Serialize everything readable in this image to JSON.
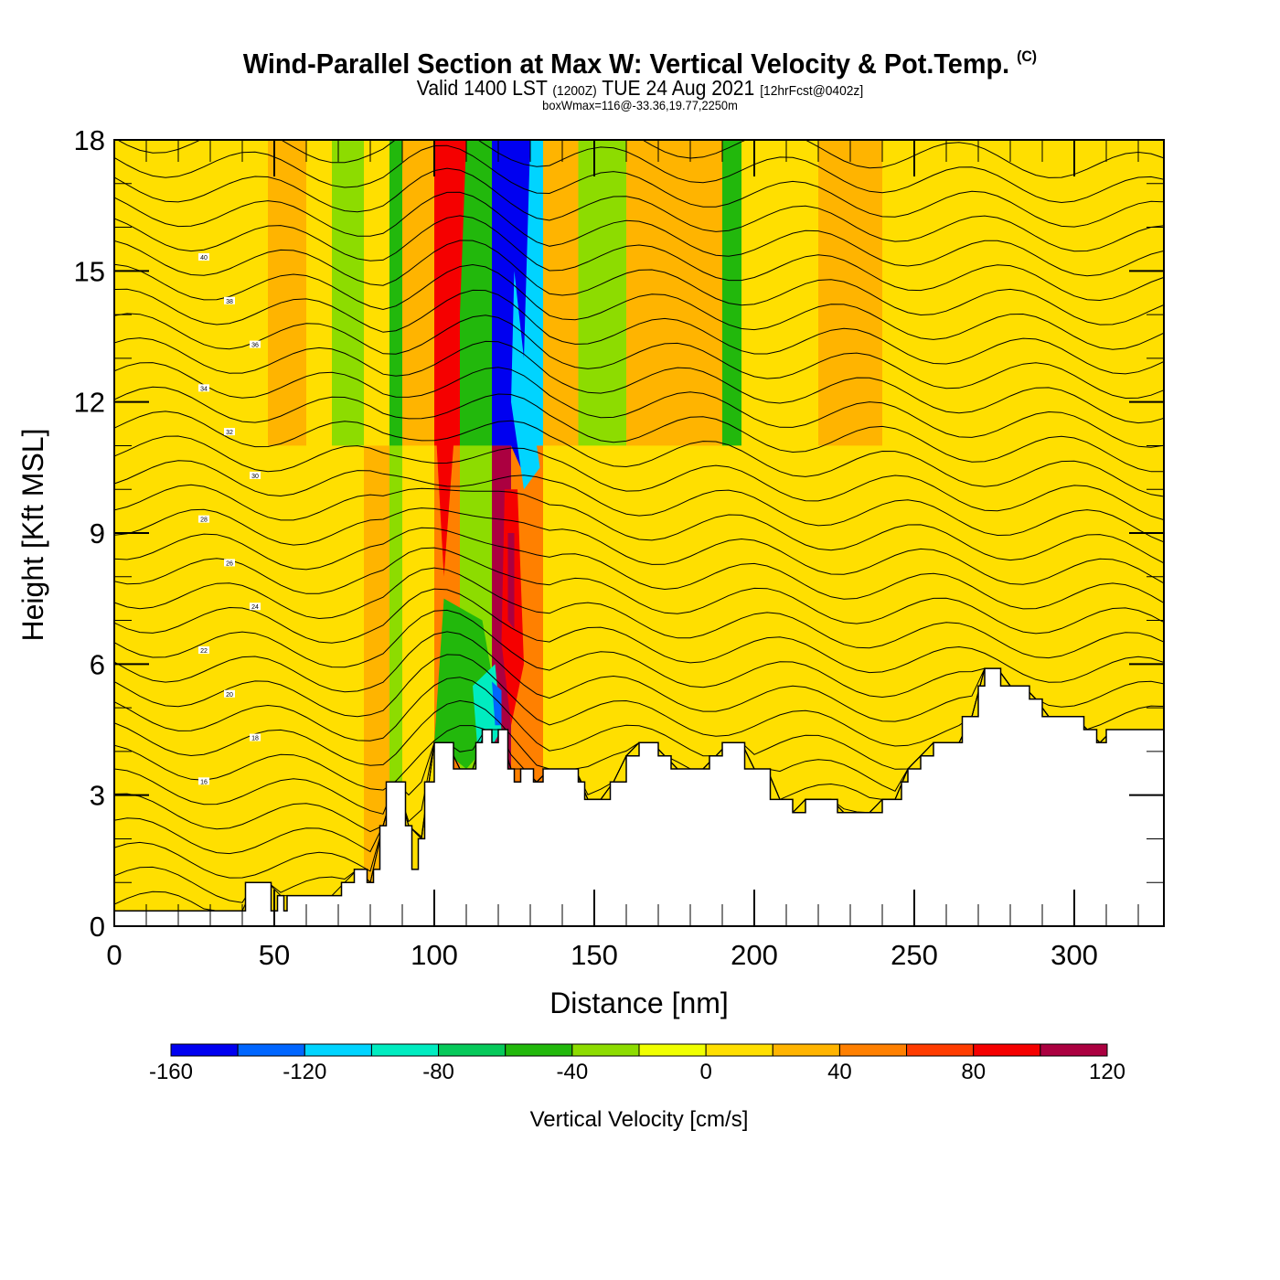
{
  "header": {
    "title_main": "Wind-Parallel Section at Max W: Vertical Velocity & Pot.Temp.",
    "title_copyright": "(C)",
    "valid_prefix": "Valid 1400 LST",
    "valid_utc": "(1200Z)",
    "valid_date": "TUE 24 Aug 2021",
    "forecast_info": "[12hrFcst@0402z]",
    "box_wmax": "boxWmax=116@-33.36,19.77,2250m"
  },
  "chart_data": {
    "type": "heatmap",
    "title": "Wind-Parallel Section at Max W: Vertical Velocity & Pot.Temp.",
    "xlabel": "Distance [nm]",
    "ylabel": "Height [Kft MSL]",
    "xlim": [
      0,
      328
    ],
    "ylim": [
      0,
      18
    ],
    "x_ticks": [
      0,
      50,
      100,
      150,
      200,
      250,
      300
    ],
    "y_ticks": [
      0,
      3,
      6,
      9,
      12,
      15,
      18
    ],
    "grid": false,
    "colorbar": {
      "title": "Vertical Velocity [cm/s]",
      "placement": "bottom",
      "boundaries": [
        -160,
        -140,
        -120,
        -100,
        -80,
        -60,
        -40,
        -20,
        0,
        20,
        40,
        60,
        80,
        100,
        120
      ],
      "tick_labels": [
        "-160",
        "-120",
        "-80",
        "-40",
        "0",
        "40",
        "80",
        "120"
      ],
      "tick_values": [
        -160,
        -120,
        -80,
        -40,
        0,
        40,
        80,
        120
      ],
      "colors": [
        "#0000f0",
        "#0066ff",
        "#00d4ff",
        "#00ecc0",
        "#06c95a",
        "#22b80c",
        "#8ddc00",
        "#f0ff00",
        "#ffdf00",
        "#ffb400",
        "#ff8000",
        "#ff3c00",
        "#f50000",
        "#ab0040"
      ]
    },
    "vertical_velocity_bands": [
      {
        "x0": 0,
        "x1": 35,
        "y0": 0,
        "y1": 18,
        "upper": 0,
        "lower": 10
      },
      {
        "x0": 35,
        "x1": 48,
        "y0": 0,
        "y1": 18,
        "upper": 10,
        "lower": 0
      },
      {
        "x0": 48,
        "x1": 60,
        "y0": 0,
        "y1": 18,
        "upper": 30,
        "lower": 10
      },
      {
        "x0": 60,
        "x1": 68,
        "y0": 0,
        "y1": 18,
        "upper": 10,
        "lower": 0
      },
      {
        "x0": 68,
        "x1": 78,
        "y0": 0,
        "y1": 18,
        "upper": -30,
        "lower": 10
      },
      {
        "x0": 78,
        "x1": 86,
        "y0": 0,
        "y1": 18,
        "upper": 10,
        "lower": 30
      },
      {
        "x0": 86,
        "x1": 90,
        "y0": 0,
        "y1": 18,
        "upper": -50,
        "lower": -30
      },
      {
        "x0": 90,
        "x1": 100,
        "y0": 0,
        "y1": 18,
        "upper": 30,
        "lower": 10
      },
      {
        "x0": 100,
        "x1": 108,
        "y0": 0,
        "y1": 18,
        "upper": 90,
        "lower": 50
      },
      {
        "x0": 108,
        "x1": 118,
        "y0": 0,
        "y1": 18,
        "upper": -50,
        "lower": -30
      },
      {
        "x0": 118,
        "x1": 124,
        "y0": 0,
        "y1": 18,
        "upper": -150,
        "lower": 110
      },
      {
        "x0": 124,
        "x1": 134,
        "y0": 0,
        "y1": 18,
        "upper": -110,
        "lower": 50
      },
      {
        "x0": 134,
        "x1": 145,
        "y0": 0,
        "y1": 18,
        "upper": 30,
        "lower": 10
      },
      {
        "x0": 145,
        "x1": 160,
        "y0": 0,
        "y1": 18,
        "upper": -30,
        "lower": 10
      },
      {
        "x0": 160,
        "x1": 190,
        "y0": 0,
        "y1": 18,
        "upper": 30,
        "lower": 10
      },
      {
        "x0": 190,
        "x1": 196,
        "y0": 0,
        "y1": 18,
        "upper": -50,
        "lower": 10
      },
      {
        "x0": 196,
        "x1": 220,
        "y0": 0,
        "y1": 18,
        "upper": 10,
        "lower": 10
      },
      {
        "x0": 220,
        "x1": 240,
        "y0": 0,
        "y1": 18,
        "upper": 30,
        "lower": 0
      },
      {
        "x0": 240,
        "x1": 300,
        "y0": 0,
        "y1": 18,
        "upper": 10,
        "lower": 10
      },
      {
        "x0": 300,
        "x1": 328,
        "y0": 0,
        "y1": 18,
        "upper": 10,
        "lower": 0
      }
    ],
    "terrain_kft": [
      [
        0,
        0.35
      ],
      [
        41,
        0.35
      ],
      [
        41,
        1.0
      ],
      [
        49,
        1.0
      ],
      [
        49,
        0.35
      ],
      [
        51,
        0.35
      ],
      [
        51,
        0.7
      ],
      [
        53,
        0.7
      ],
      [
        53,
        0.35
      ],
      [
        54,
        0.35
      ],
      [
        54,
        0.7
      ],
      [
        71,
        0.7
      ],
      [
        71,
        1.0
      ],
      [
        75,
        1.0
      ],
      [
        75,
        1.3
      ],
      [
        79,
        1.3
      ],
      [
        79,
        1.0
      ],
      [
        81,
        1.0
      ],
      [
        81,
        1.3
      ],
      [
        83,
        1.3
      ],
      [
        83,
        2.3
      ],
      [
        85,
        2.3
      ],
      [
        85,
        3.3
      ],
      [
        91,
        3.3
      ],
      [
        91,
        2.3
      ],
      [
        93,
        2.3
      ],
      [
        93,
        1.3
      ],
      [
        95,
        1.3
      ],
      [
        95,
        2.0
      ],
      [
        97,
        2.0
      ],
      [
        97,
        3.3
      ],
      [
        100,
        3.3
      ],
      [
        100,
        4.2
      ],
      [
        106,
        4.2
      ],
      [
        106,
        3.6
      ],
      [
        108,
        3.6
      ],
      [
        108,
        3.6
      ],
      [
        113,
        3.6
      ],
      [
        113,
        4.2
      ],
      [
        115,
        4.2
      ],
      [
        115,
        4.5
      ],
      [
        118,
        4.5
      ],
      [
        118,
        4.2
      ],
      [
        120,
        4.2
      ],
      [
        120,
        4.5
      ],
      [
        123,
        4.5
      ],
      [
        123,
        3.6
      ],
      [
        125,
        3.6
      ],
      [
        125,
        3.3
      ],
      [
        127,
        3.3
      ],
      [
        127,
        3.6
      ],
      [
        131,
        3.6
      ],
      [
        131,
        3.3
      ],
      [
        134,
        3.3
      ],
      [
        134,
        3.6
      ],
      [
        145,
        3.6
      ],
      [
        145,
        3.3
      ],
      [
        147,
        3.3
      ],
      [
        147,
        2.9
      ],
      [
        155,
        2.9
      ],
      [
        155,
        3.3
      ],
      [
        160,
        3.3
      ],
      [
        160,
        3.9
      ],
      [
        164,
        3.9
      ],
      [
        164,
        4.2
      ],
      [
        170,
        4.2
      ],
      [
        170,
        3.9
      ],
      [
        174,
        3.9
      ],
      [
        174,
        3.6
      ],
      [
        186,
        3.6
      ],
      [
        186,
        3.9
      ],
      [
        190,
        3.9
      ],
      [
        190,
        4.2
      ],
      [
        197,
        4.2
      ],
      [
        197,
        3.6
      ],
      [
        205,
        3.6
      ],
      [
        205,
        2.9
      ],
      [
        212,
        2.9
      ],
      [
        212,
        2.6
      ],
      [
        216,
        2.6
      ],
      [
        216,
        2.9
      ],
      [
        226,
        2.9
      ],
      [
        226,
        2.6
      ],
      [
        240,
        2.6
      ],
      [
        240,
        2.9
      ],
      [
        246,
        2.9
      ],
      [
        246,
        3.3
      ],
      [
        248,
        3.3
      ],
      [
        248,
        3.6
      ],
      [
        252,
        3.6
      ],
      [
        252,
        3.9
      ],
      [
        256,
        3.9
      ],
      [
        256,
        4.2
      ],
      [
        265,
        4.2
      ],
      [
        265,
        4.8
      ],
      [
        270,
        4.8
      ],
      [
        270,
        5.5
      ],
      [
        272,
        5.5
      ],
      [
        272,
        5.9
      ],
      [
        277,
        5.9
      ],
      [
        277,
        5.5
      ],
      [
        286,
        5.5
      ],
      [
        286,
        5.2
      ],
      [
        290,
        5.2
      ],
      [
        290,
        4.8
      ],
      [
        303,
        4.8
      ],
      [
        303,
        4.5
      ],
      [
        307,
        4.5
      ],
      [
        307,
        4.2
      ],
      [
        310,
        4.2
      ],
      [
        310,
        4.5
      ],
      [
        328,
        4.5
      ]
    ],
    "potential_temperature_contour_labels": [
      "40",
      "38",
      "36",
      "34",
      "32",
      "30",
      "28",
      "26",
      "24",
      "22",
      "20",
      "18",
      "16"
    ]
  },
  "footer": {}
}
